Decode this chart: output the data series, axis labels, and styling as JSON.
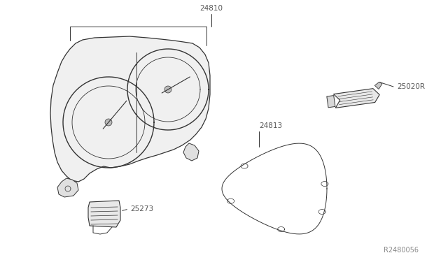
{
  "bg_color": "#ffffff",
  "line_color": "#333333",
  "text_color": "#555555",
  "figsize": [
    6.4,
    3.72
  ],
  "dpi": 100
}
